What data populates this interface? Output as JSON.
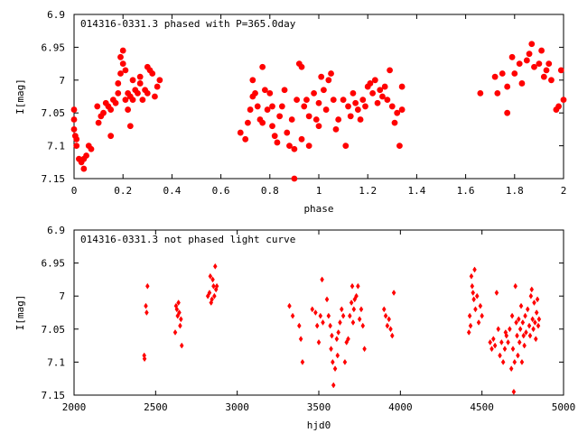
{
  "chart_data": [
    {
      "type": "scatter",
      "title": "014316-0331.3 phased with P=365.0day",
      "xlabel": "phase",
      "ylabel": "I[mag]",
      "xlim": [
        0,
        2
      ],
      "ylim": [
        7.15,
        6.9
      ],
      "y_inverted": true,
      "xticks": [
        0,
        0.2,
        0.4,
        0.6,
        0.8,
        1,
        1.2,
        1.4,
        1.6,
        1.8,
        2
      ],
      "xtick_labels": [
        "0",
        "0.2",
        "0.4",
        "0.6",
        "0.8",
        "1",
        "1.2",
        "1.4",
        "1.6",
        "1.8",
        "2"
      ],
      "yticks": [
        6.9,
        6.95,
        7,
        7.05,
        7.1,
        7.15
      ],
      "ytick_labels": [
        "6.9",
        "6.95",
        "7",
        "7.05",
        "7.1",
        "7.15"
      ],
      "grid": false,
      "marker": "filled-circle-large",
      "color": "#ff0000",
      "points": [
        [
          0.0,
          7.045
        ],
        [
          0.0,
          7.06
        ],
        [
          0.0,
          7.075
        ],
        [
          0.005,
          7.085
        ],
        [
          0.01,
          7.09
        ],
        [
          0.01,
          7.1
        ],
        [
          0.02,
          7.12
        ],
        [
          0.03,
          7.125
        ],
        [
          0.04,
          7.12
        ],
        [
          0.04,
          7.135
        ],
        [
          0.05,
          7.115
        ],
        [
          0.06,
          7.1
        ],
        [
          0.07,
          7.105
        ],
        [
          0.095,
          7.04
        ],
        [
          0.1,
          7.065
        ],
        [
          0.11,
          7.055
        ],
        [
          0.12,
          7.05
        ],
        [
          0.13,
          7.035
        ],
        [
          0.14,
          7.04
        ],
        [
          0.15,
          7.045
        ],
        [
          0.15,
          7.085
        ],
        [
          0.16,
          7.03
        ],
        [
          0.17,
          7.035
        ],
        [
          0.18,
          7.005
        ],
        [
          0.18,
          7.02
        ],
        [
          0.19,
          6.99
        ],
        [
          0.19,
          6.965
        ],
        [
          0.2,
          6.955
        ],
        [
          0.2,
          6.975
        ],
        [
          0.21,
          6.985
        ],
        [
          0.21,
          7.03
        ],
        [
          0.22,
          7.02
        ],
        [
          0.22,
          7.045
        ],
        [
          0.23,
          7.025
        ],
        [
          0.23,
          7.07
        ],
        [
          0.24,
          7.0
        ],
        [
          0.24,
          7.03
        ],
        [
          0.25,
          7.015
        ],
        [
          0.26,
          7.02
        ],
        [
          0.27,
          6.995
        ],
        [
          0.27,
          7.005
        ],
        [
          0.28,
          7.03
        ],
        [
          0.29,
          7.015
        ],
        [
          0.3,
          6.98
        ],
        [
          0.3,
          7.02
        ],
        [
          0.31,
          6.985
        ],
        [
          0.32,
          6.99
        ],
        [
          0.33,
          7.025
        ],
        [
          0.34,
          7.01
        ],
        [
          0.35,
          7.0
        ],
        [
          0.68,
          7.08
        ],
        [
          0.7,
          7.09
        ],
        [
          0.71,
          7.065
        ],
        [
          0.72,
          7.045
        ],
        [
          0.73,
          7.025
        ],
        [
          0.73,
          7.0
        ],
        [
          0.74,
          7.02
        ],
        [
          0.75,
          7.04
        ],
        [
          0.76,
          7.06
        ],
        [
          0.77,
          6.98
        ],
        [
          0.77,
          7.065
        ],
        [
          0.78,
          7.015
        ],
        [
          0.79,
          7.045
        ],
        [
          0.8,
          7.02
        ],
        [
          0.81,
          7.04
        ],
        [
          0.81,
          7.07
        ],
        [
          0.82,
          7.085
        ],
        [
          0.83,
          7.095
        ],
        [
          0.84,
          7.055
        ],
        [
          0.85,
          7.04
        ],
        [
          0.86,
          7.015
        ],
        [
          0.87,
          7.08
        ],
        [
          0.88,
          7.1
        ],
        [
          0.89,
          7.06
        ],
        [
          0.9,
          7.105
        ],
        [
          0.9,
          7.15
        ],
        [
          0.91,
          7.03
        ],
        [
          0.92,
          6.975
        ],
        [
          0.93,
          6.98
        ],
        [
          0.93,
          7.09
        ],
        [
          0.94,
          7.04
        ],
        [
          0.95,
          7.03
        ],
        [
          0.96,
          7.055
        ],
        [
          0.96,
          7.1
        ],
        [
          0.98,
          7.02
        ],
        [
          0.99,
          7.06
        ],
        [
          1.0,
          7.035
        ],
        [
          1.0,
          7.07
        ],
        [
          1.01,
          6.995
        ],
        [
          1.02,
          7.015
        ],
        [
          1.03,
          7.045
        ],
        [
          1.04,
          7.0
        ],
        [
          1.05,
          6.99
        ],
        [
          1.06,
          7.03
        ],
        [
          1.07,
          7.075
        ],
        [
          1.08,
          7.06
        ],
        [
          1.1,
          7.03
        ],
        [
          1.11,
          7.1
        ],
        [
          1.12,
          7.04
        ],
        [
          1.13,
          7.055
        ],
        [
          1.14,
          7.02
        ],
        [
          1.15,
          7.035
        ],
        [
          1.16,
          7.045
        ],
        [
          1.17,
          7.06
        ],
        [
          1.18,
          7.03
        ],
        [
          1.19,
          7.04
        ],
        [
          1.2,
          7.01
        ],
        [
          1.21,
          7.005
        ],
        [
          1.22,
          7.02
        ],
        [
          1.23,
          7.0
        ],
        [
          1.24,
          7.035
        ],
        [
          1.25,
          7.015
        ],
        [
          1.26,
          7.025
        ],
        [
          1.27,
          7.01
        ],
        [
          1.28,
          7.03
        ],
        [
          1.29,
          6.985
        ],
        [
          1.3,
          7.04
        ],
        [
          1.31,
          7.065
        ],
        [
          1.32,
          7.05
        ],
        [
          1.33,
          7.1
        ],
        [
          1.34,
          7.045
        ],
        [
          1.34,
          7.01
        ],
        [
          1.66,
          7.02
        ],
        [
          1.72,
          6.995
        ],
        [
          1.73,
          7.02
        ],
        [
          1.75,
          6.99
        ],
        [
          1.77,
          7.01
        ],
        [
          1.77,
          7.05
        ],
        [
          1.79,
          6.965
        ],
        [
          1.8,
          6.99
        ],
        [
          1.82,
          6.975
        ],
        [
          1.83,
          7.005
        ],
        [
          1.85,
          6.97
        ],
        [
          1.86,
          6.96
        ],
        [
          1.87,
          6.945
        ],
        [
          1.88,
          6.98
        ],
        [
          1.9,
          6.975
        ],
        [
          1.91,
          6.955
        ],
        [
          1.92,
          6.995
        ],
        [
          1.93,
          6.985
        ],
        [
          1.94,
          6.975
        ],
        [
          1.95,
          7.0
        ],
        [
          1.97,
          7.045
        ],
        [
          1.98,
          7.04
        ],
        [
          1.99,
          6.985
        ],
        [
          2.0,
          7.03
        ]
      ]
    },
    {
      "type": "scatter",
      "title": "014316-0331.3 not phased light curve",
      "xlabel": "hjd0",
      "ylabel": "I[mag]",
      "xlim": [
        2000,
        5000
      ],
      "ylim": [
        7.15,
        6.9
      ],
      "y_inverted": true,
      "xticks": [
        2000,
        2500,
        3000,
        3500,
        4000,
        4500,
        5000
      ],
      "xtick_labels": [
        "2000",
        "2500",
        "3000",
        "3500",
        "4000",
        "4500",
        "5000"
      ],
      "yticks": [
        6.9,
        6.95,
        7,
        7.05,
        7.1,
        7.15
      ],
      "ytick_labels": [
        "6.9",
        "6.95",
        "7",
        "7.05",
        "7.1",
        "7.15"
      ],
      "grid": false,
      "marker": "diamond-small",
      "color": "#ff0000",
      "points": [
        [
          2430,
          7.09
        ],
        [
          2432,
          7.095
        ],
        [
          2440,
          7.015
        ],
        [
          2445,
          7.025
        ],
        [
          2450,
          6.985
        ],
        [
          2620,
          7.055
        ],
        [
          2625,
          7.015
        ],
        [
          2630,
          7.02
        ],
        [
          2635,
          7.03
        ],
        [
          2640,
          7.01
        ],
        [
          2645,
          7.025
        ],
        [
          2650,
          7.045
        ],
        [
          2655,
          7.035
        ],
        [
          2660,
          7.075
        ],
        [
          2820,
          7.0
        ],
        [
          2830,
          6.995
        ],
        [
          2835,
          6.97
        ],
        [
          2840,
          7.01
        ],
        [
          2845,
          7.005
        ],
        [
          2850,
          6.975
        ],
        [
          2855,
          6.985
        ],
        [
          2860,
          7.0
        ],
        [
          2865,
          6.955
        ],
        [
          2870,
          6.99
        ],
        [
          2875,
          6.985
        ],
        [
          3320,
          7.015
        ],
        [
          3340,
          7.03
        ],
        [
          3380,
          7.045
        ],
        [
          3390,
          7.065
        ],
        [
          3400,
          7.1
        ],
        [
          3460,
          7.02
        ],
        [
          3480,
          7.025
        ],
        [
          3490,
          7.045
        ],
        [
          3500,
          7.07
        ],
        [
          3510,
          7.03
        ],
        [
          3520,
          6.975
        ],
        [
          3525,
          7.04
        ],
        [
          3550,
          7.005
        ],
        [
          3560,
          7.03
        ],
        [
          3570,
          7.045
        ],
        [
          3575,
          7.08
        ],
        [
          3580,
          7.06
        ],
        [
          3585,
          7.1
        ],
        [
          3590,
          7.135
        ],
        [
          3600,
          7.11
        ],
        [
          3610,
          7.065
        ],
        [
          3615,
          7.09
        ],
        [
          3620,
          7.055
        ],
        [
          3630,
          7.04
        ],
        [
          3640,
          7.02
        ],
        [
          3650,
          7.03
        ],
        [
          3660,
          7.1
        ],
        [
          3670,
          7.07
        ],
        [
          3680,
          7.065
        ],
        [
          3690,
          7.03
        ],
        [
          3700,
          7.01
        ],
        [
          3705,
          6.985
        ],
        [
          3710,
          7.04
        ],
        [
          3715,
          7.02
        ],
        [
          3720,
          7.005
        ],
        [
          3730,
          7.0
        ],
        [
          3740,
          6.985
        ],
        [
          3750,
          7.035
        ],
        [
          3760,
          7.02
        ],
        [
          3770,
          7.045
        ],
        [
          3780,
          7.08
        ],
        [
          3900,
          7.02
        ],
        [
          3910,
          7.03
        ],
        [
          3920,
          7.045
        ],
        [
          3930,
          7.035
        ],
        [
          3940,
          7.05
        ],
        [
          3950,
          7.06
        ],
        [
          3960,
          6.995
        ],
        [
          4420,
          7.055
        ],
        [
          4425,
          7.03
        ],
        [
          4430,
          7.045
        ],
        [
          4435,
          6.97
        ],
        [
          4440,
          6.985
        ],
        [
          4445,
          6.995
        ],
        [
          4450,
          7.005
        ],
        [
          4455,
          6.96
        ],
        [
          4460,
          7.02
        ],
        [
          4470,
          7.0
        ],
        [
          4480,
          7.04
        ],
        [
          4490,
          7.015
        ],
        [
          4500,
          7.03
        ],
        [
          4550,
          7.07
        ],
        [
          4560,
          7.08
        ],
        [
          4570,
          7.065
        ],
        [
          4580,
          7.075
        ],
        [
          4590,
          6.995
        ],
        [
          4600,
          7.05
        ],
        [
          4610,
          7.09
        ],
        [
          4620,
          7.07
        ],
        [
          4630,
          7.1
        ],
        [
          4640,
          7.08
        ],
        [
          4645,
          7.055
        ],
        [
          4650,
          7.06
        ],
        [
          4660,
          7.07
        ],
        [
          4670,
          7.05
        ],
        [
          4680,
          7.11
        ],
        [
          4685,
          7.03
        ],
        [
          4690,
          7.08
        ],
        [
          4695,
          7.145
        ],
        [
          4700,
          7.1
        ],
        [
          4705,
          6.985
        ],
        [
          4710,
          7.04
        ],
        [
          4715,
          7.06
        ],
        [
          4720,
          7.09
        ],
        [
          4725,
          7.035
        ],
        [
          4730,
          7.07
        ],
        [
          4735,
          7.05
        ],
        [
          4740,
          7.015
        ],
        [
          4745,
          7.1
        ],
        [
          4750,
          7.04
        ],
        [
          4755,
          7.06
        ],
        [
          4760,
          7.075
        ],
        [
          4765,
          7.03
        ],
        [
          4770,
          7.055
        ],
        [
          4780,
          7.02
        ],
        [
          4790,
          7.045
        ],
        [
          4795,
          7.06
        ],
        [
          4800,
          7.0
        ],
        [
          4805,
          6.99
        ],
        [
          4810,
          7.035
        ],
        [
          4815,
          7.05
        ],
        [
          4820,
          7.01
        ],
        [
          4825,
          7.04
        ],
        [
          4830,
          7.065
        ],
        [
          4835,
          7.025
        ],
        [
          4840,
          7.005
        ],
        [
          4845,
          7.045
        ],
        [
          4850,
          7.035
        ]
      ]
    }
  ]
}
